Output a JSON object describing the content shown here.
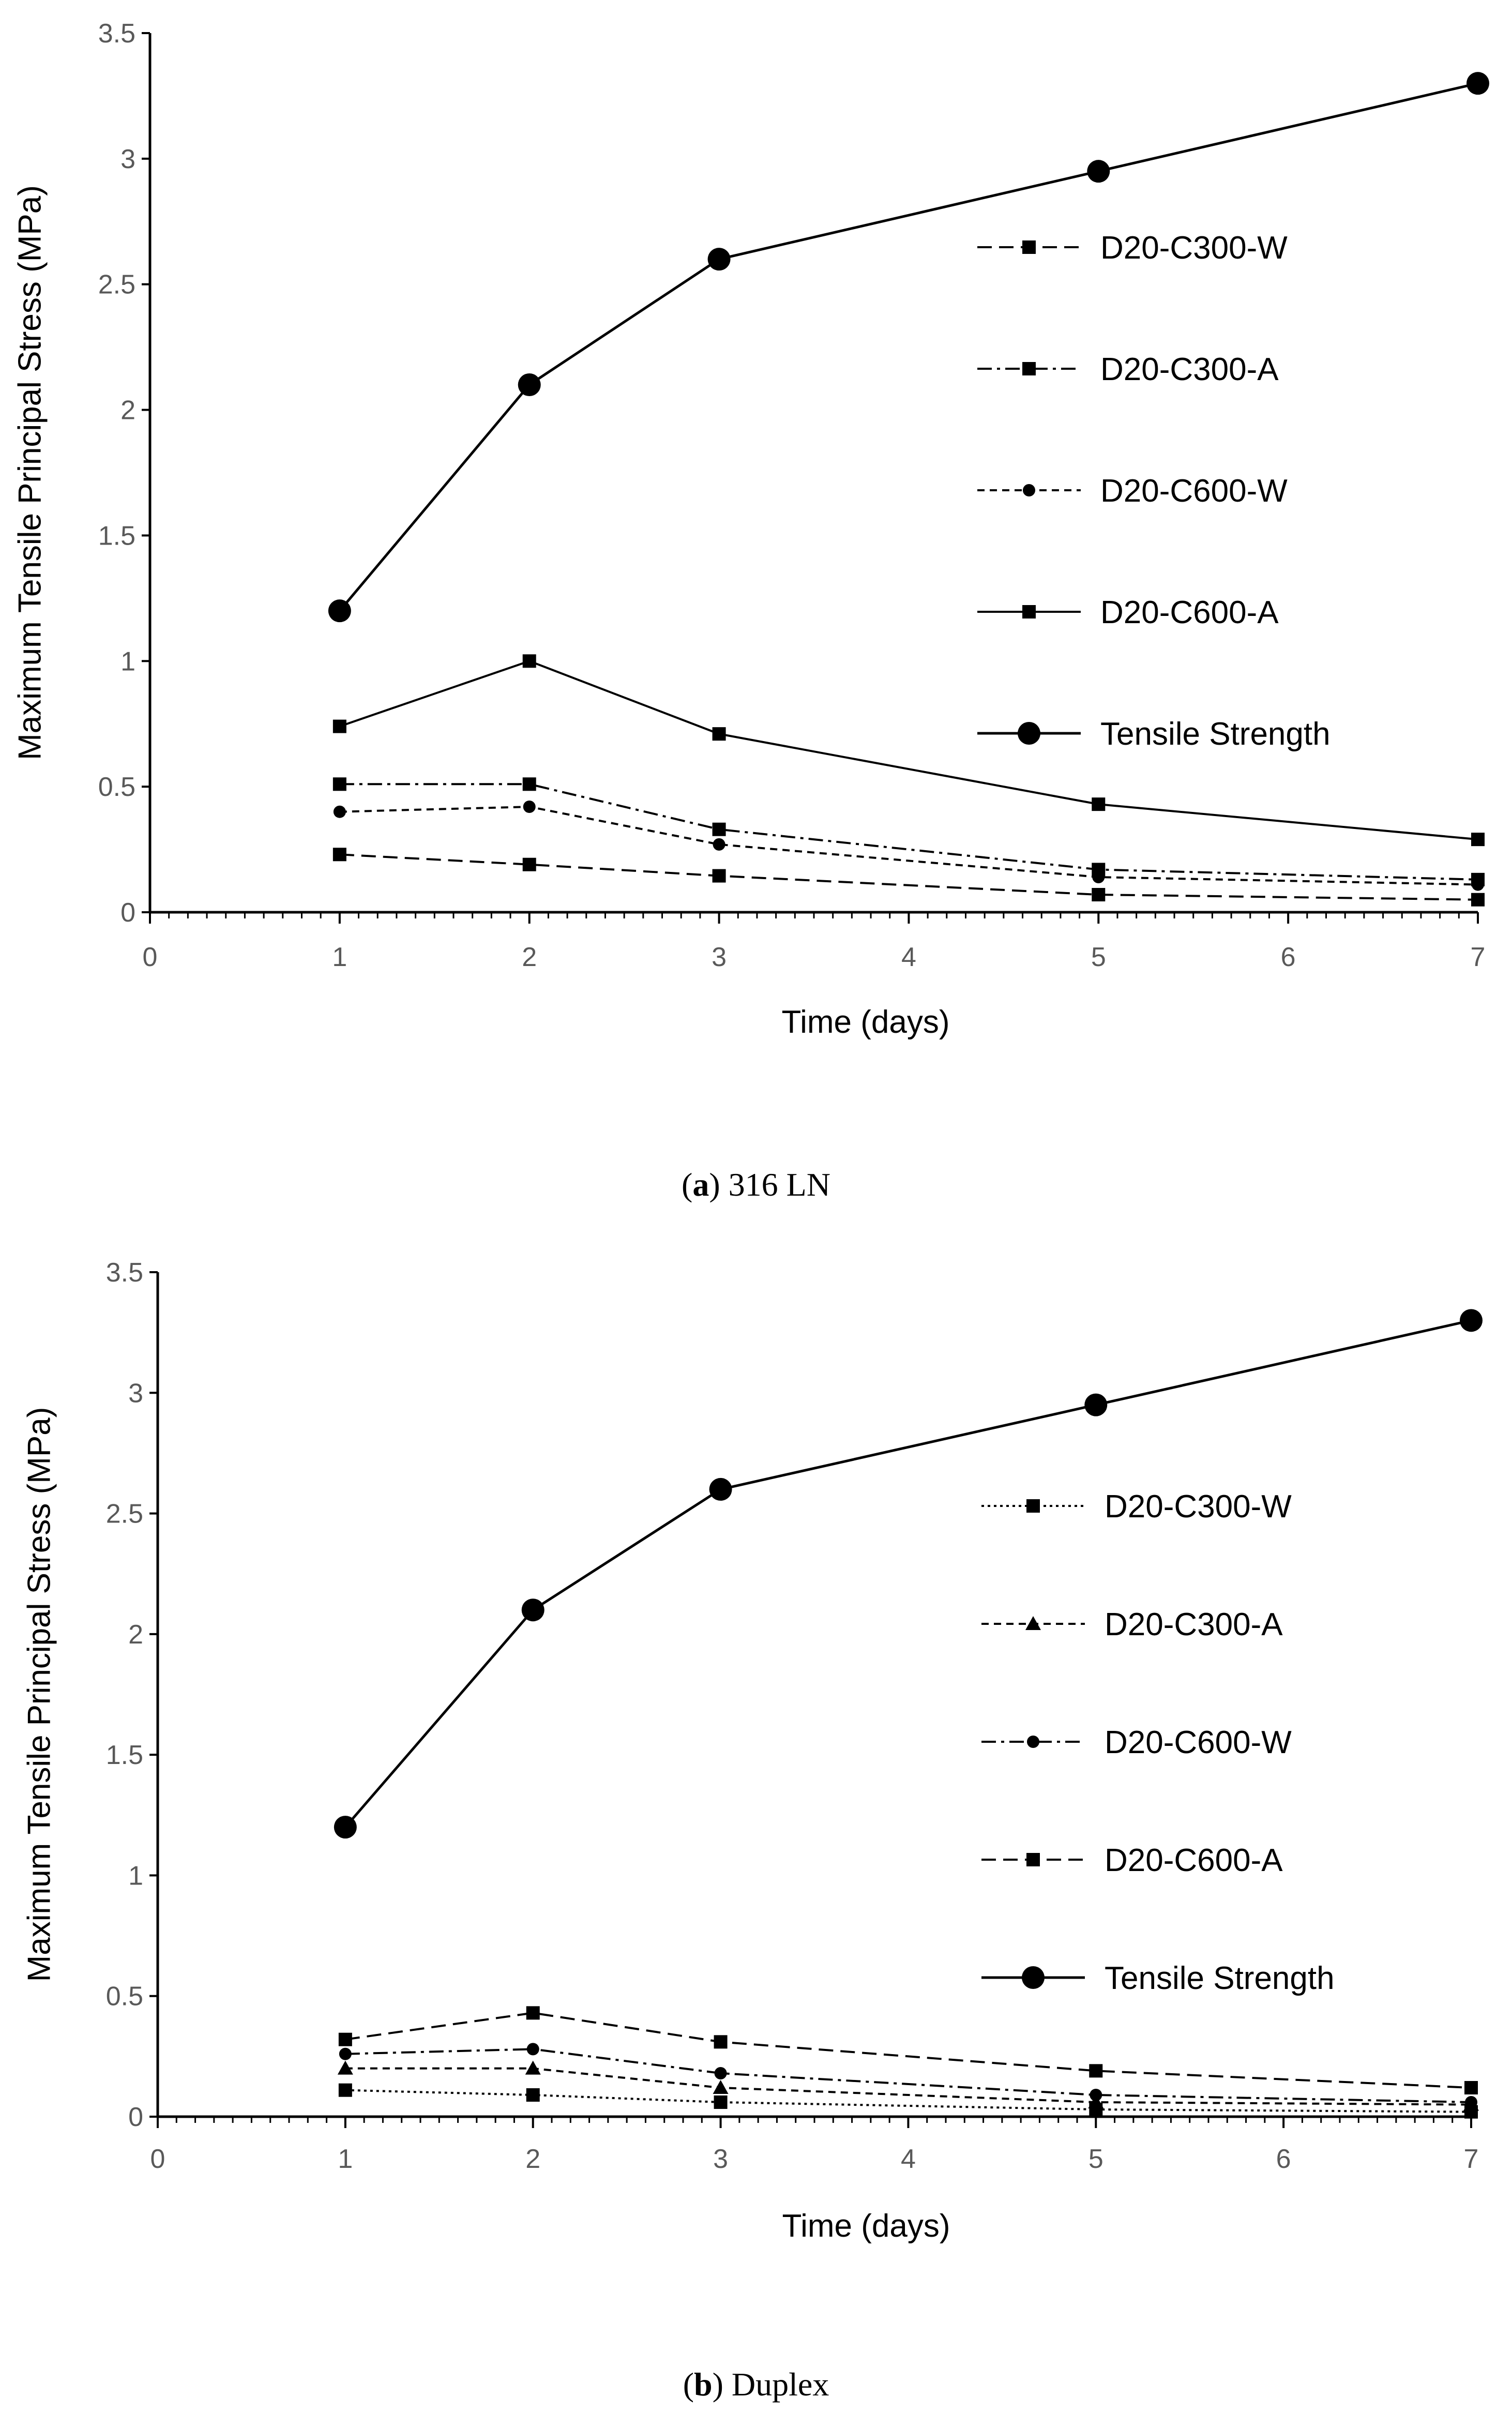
{
  "chart_data": [
    {
      "type": "line",
      "caption_letter": "a",
      "caption_text": "316 LN",
      "xlabel": "Time (days)",
      "ylabel": "Maximum Tensile Principal Stress (MPa)",
      "xlim": [
        0,
        7
      ],
      "ylim": [
        0,
        3.5
      ],
      "xticks": [
        "0",
        "1",
        "2",
        "3",
        "4",
        "5",
        "6",
        "7"
      ],
      "yticks": [
        "0",
        "0.5",
        "1",
        "1.5",
        "2",
        "2.5",
        "3",
        "3.5"
      ],
      "x": [
        1,
        2,
        3,
        5,
        7
      ],
      "legend_position": "right",
      "series": [
        {
          "name": "D20-C300-W",
          "values": [
            0.23,
            0.19,
            0.145,
            0.07,
            0.05
          ],
          "dash": "dash",
          "marker": "square"
        },
        {
          "name": "D20-C300-A",
          "values": [
            0.51,
            0.51,
            0.33,
            0.17,
            0.13
          ],
          "dash": "dashdot",
          "marker": "square"
        },
        {
          "name": "D20-C600-W",
          "values": [
            0.4,
            0.42,
            0.27,
            0.14,
            0.11
          ],
          "dash": "shortdash",
          "marker": "circle"
        },
        {
          "name": "D20-C600-A",
          "values": [
            0.74,
            1.0,
            0.71,
            0.43,
            0.29
          ],
          "dash": "solid",
          "marker": "square"
        },
        {
          "name": "Tensile Strength",
          "values": [
            1.2,
            2.1,
            2.6,
            2.95,
            3.3
          ],
          "dash": "solid",
          "marker": "bigcircle"
        }
      ]
    },
    {
      "type": "line",
      "caption_letter": "b",
      "caption_text": "Duplex",
      "xlabel": "Time (days)",
      "ylabel": "Maximum Tensile Principal Stress (MPa)",
      "xlim": [
        0,
        7
      ],
      "ylim": [
        0,
        3.5
      ],
      "xticks": [
        "0",
        "1",
        "2",
        "3",
        "4",
        "5",
        "6",
        "7"
      ],
      "yticks": [
        "0",
        "0.5",
        "1",
        "1.5",
        "2",
        "2.5",
        "3",
        "3.5"
      ],
      "x": [
        1,
        2,
        3,
        5,
        7
      ],
      "legend_position": "right",
      "series": [
        {
          "name": "D20-C300-W",
          "values": [
            0.11,
            0.09,
            0.06,
            0.03,
            0.02
          ],
          "dash": "dot",
          "marker": "square"
        },
        {
          "name": "D20-C300-A",
          "values": [
            0.2,
            0.2,
            0.12,
            0.06,
            0.05
          ],
          "dash": "shortdash",
          "marker": "triangle"
        },
        {
          "name": "D20-C600-W",
          "values": [
            0.26,
            0.28,
            0.18,
            0.09,
            0.06
          ],
          "dash": "dashdot",
          "marker": "circle"
        },
        {
          "name": "D20-C600-A",
          "values": [
            0.32,
            0.43,
            0.31,
            0.19,
            0.12
          ],
          "dash": "dash",
          "marker": "square"
        },
        {
          "name": "Tensile Strength",
          "values": [
            1.2,
            2.1,
            2.6,
            2.95,
            3.3
          ],
          "dash": "solid",
          "marker": "bigcircle"
        }
      ]
    }
  ]
}
